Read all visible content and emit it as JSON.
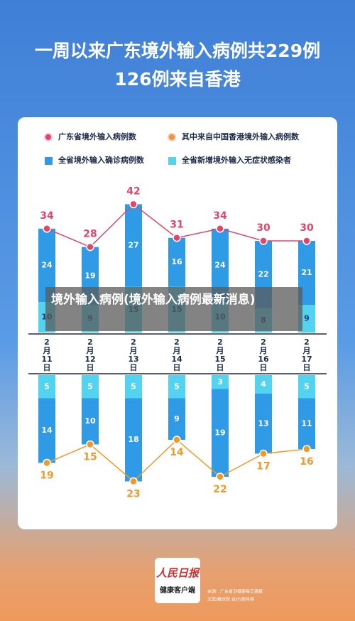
{
  "header": {
    "title": "一周以来广东境外输入病例共229例",
    "subtitle": "126例来自香港"
  },
  "overlay": "境外输入病例(境外输入病例最新消息)",
  "chart_data": [
    {
      "type": "stacked-bar-line",
      "categories": [
        "2月11日",
        "2月12日",
        "2月13日",
        "2月14日",
        "2月15日",
        "2月16日",
        "2月17日"
      ],
      "series": [
        {
          "name": "广东省境外输入病例数",
          "kind": "line",
          "color": "#e0466a",
          "values": [
            34,
            28,
            42,
            31,
            34,
            30,
            30
          ]
        },
        {
          "name": "全省境外输入确诊病例数",
          "kind": "bar",
          "color": "#2f9be6",
          "values": [
            24,
            19,
            27,
            16,
            24,
            22,
            21
          ]
        },
        {
          "name": "全省新增境外输入无症状感染者",
          "kind": "bar",
          "color": "#52d3f0",
          "values": [
            10,
            9,
            15,
            15,
            10,
            8,
            9
          ]
        }
      ]
    },
    {
      "type": "stacked-bar-line-down",
      "series": [
        {
          "name": "其中来自中国香港境外输入病例数",
          "kind": "line",
          "color": "#ee9a2a",
          "values": [
            19,
            15,
            23,
            14,
            22,
            17,
            16
          ]
        },
        {
          "kind": "bar",
          "color": "#2f9be6",
          "values": [
            14,
            10,
            18,
            9,
            19,
            13,
            11
          ]
        },
        {
          "kind": "bar",
          "color": "#52d3f0",
          "values": [
            5,
            5,
            5,
            5,
            3,
            4,
            5
          ]
        }
      ]
    }
  ],
  "footer": {
    "logo": "人民日报",
    "logo_sub": "健康客户端",
    "source": "来源：广东省卫健委每日通报",
    "credits": "文案/戴欣然  设计/郭月婷"
  }
}
